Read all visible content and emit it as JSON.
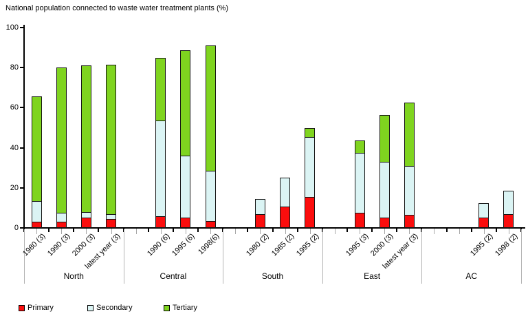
{
  "chart_data": {
    "type": "bar",
    "stacked": true,
    "title": "National population connected to waste water treatment plants (%)",
    "xlabel": "",
    "ylabel": "",
    "ylim": [
      0,
      100
    ],
    "yticks": [
      0,
      20,
      40,
      60,
      80,
      100
    ],
    "grid": false,
    "legend_position": "bottom",
    "series": [
      {
        "name": "Primary",
        "color": "#fb0d0d"
      },
      {
        "name": "Secondary",
        "color": "#dbf4f4"
      },
      {
        "name": "Tertiary",
        "color": "#7fd41f"
      }
    ],
    "groups": [
      {
        "label": "North",
        "bars": [
          {
            "label": "1980 (3)",
            "values": [
              3,
              10.5,
              52
            ]
          },
          {
            "label": "1990 (3)",
            "values": [
              3,
              4.5,
              72.5
            ]
          },
          {
            "label": "2000 (3)",
            "values": [
              5,
              3,
              73
            ]
          },
          {
            "label": "latest year (3)",
            "values": [
              4.5,
              2.5,
              74.5
            ]
          }
        ]
      },
      {
        "label": "Central",
        "bars": [
          {
            "label": "1990 (6)",
            "values": [
              6,
              47.5,
              31.5
            ]
          },
          {
            "label": "1995 (6)",
            "values": [
              5,
              31,
              52.5
            ]
          },
          {
            "label": "1998(6)",
            "values": [
              3.5,
              25,
              62.5
            ]
          }
        ]
      },
      {
        "label": "South",
        "bars": [
          {
            "label": "1980 (2)",
            "values": [
              7,
              7.5,
              0
            ]
          },
          {
            "label": "1985 (2)",
            "values": [
              10.5,
              14.5,
              0
            ]
          },
          {
            "label": "1995 (2)",
            "values": [
              15.5,
              30,
              4.5
            ]
          }
        ]
      },
      {
        "label": "East",
        "bars": [
          {
            "label": "1995 (3)",
            "values": [
              7.5,
              30,
              6
            ]
          },
          {
            "label": "2000 (3)",
            "values": [
              5,
              28,
              23.5
            ]
          },
          {
            "label": "latest year (3)",
            "values": [
              6.5,
              24.5,
              31.5
            ]
          }
        ]
      },
      {
        "label": "AC",
        "bars": [
          {
            "label": "1995 (2)",
            "values": [
              5,
              7.5,
              0
            ]
          },
          {
            "label": "1998 (2)",
            "values": [
              7,
              11.5,
              0
            ]
          }
        ]
      }
    ]
  }
}
